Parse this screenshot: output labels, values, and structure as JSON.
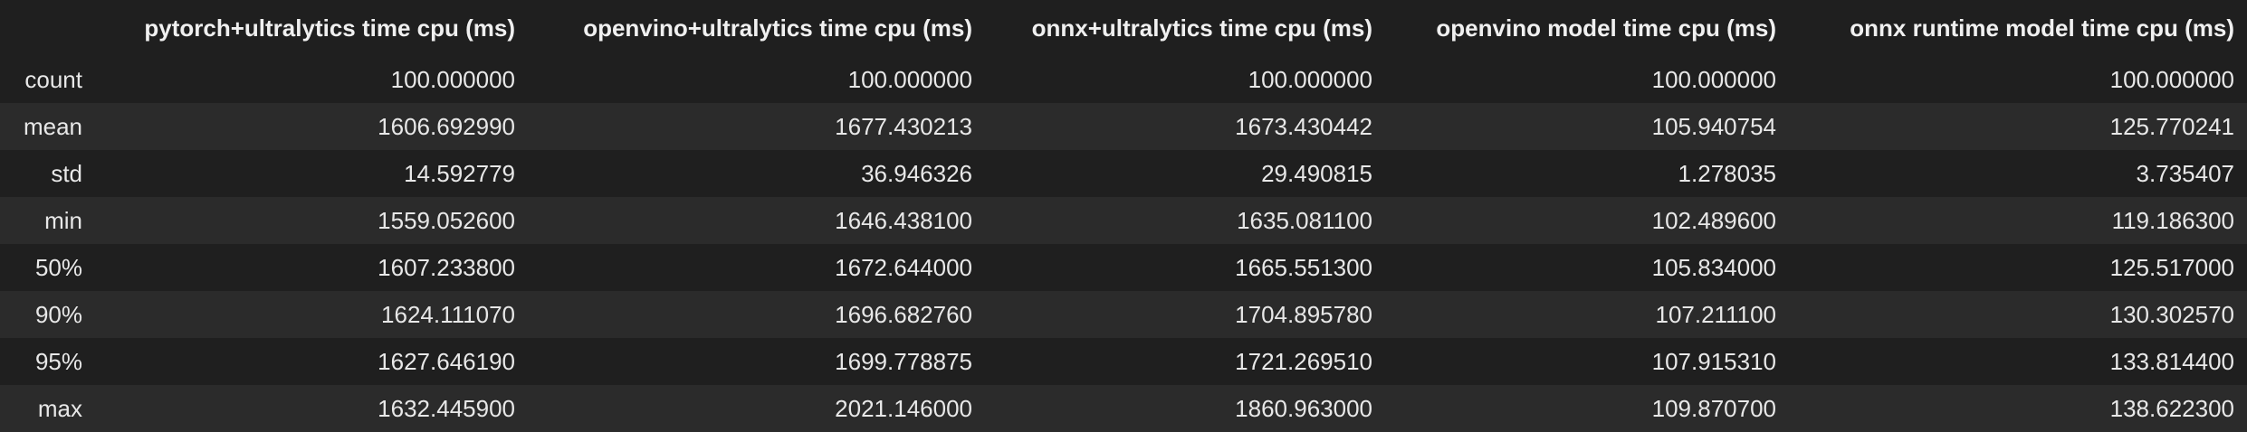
{
  "table": {
    "corner": "",
    "columns": [
      "pytorch+ultralytics time cpu (ms)",
      "openvino+ultralytics time cpu (ms)",
      "onnx+ultralytics time cpu (ms)",
      "openvino model time cpu (ms)",
      "onnx runtime model time cpu (ms)"
    ],
    "rows": [
      {
        "label": "count",
        "values": [
          "100.000000",
          "100.000000",
          "100.000000",
          "100.000000",
          "100.000000"
        ]
      },
      {
        "label": "mean",
        "values": [
          "1606.692990",
          "1677.430213",
          "1673.430442",
          "105.940754",
          "125.770241"
        ]
      },
      {
        "label": "std",
        "values": [
          "14.592779",
          "36.946326",
          "29.490815",
          "1.278035",
          "3.735407"
        ]
      },
      {
        "label": "min",
        "values": [
          "1559.052600",
          "1646.438100",
          "1635.081100",
          "102.489600",
          "119.186300"
        ]
      },
      {
        "label": "50%",
        "values": [
          "1607.233800",
          "1672.644000",
          "1665.551300",
          "105.834000",
          "125.517000"
        ]
      },
      {
        "label": "90%",
        "values": [
          "1624.111070",
          "1696.682760",
          "1704.895780",
          "107.211100",
          "130.302570"
        ]
      },
      {
        "label": "95%",
        "values": [
          "1627.646190",
          "1699.778875",
          "1721.269510",
          "107.915310",
          "133.814400"
        ]
      },
      {
        "label": "max",
        "values": [
          "1632.445900",
          "2021.146000",
          "1860.963000",
          "109.870700",
          "138.622300"
        ]
      }
    ]
  }
}
